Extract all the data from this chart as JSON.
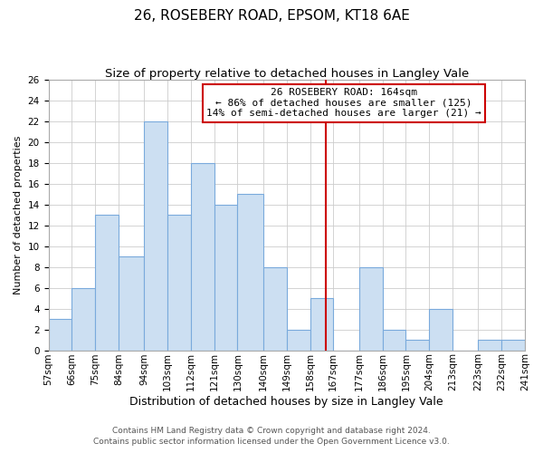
{
  "title": "26, ROSEBERY ROAD, EPSOM, KT18 6AE",
  "subtitle": "Size of property relative to detached houses in Langley Vale",
  "xlabel": "Distribution of detached houses by size in Langley Vale",
  "ylabel": "Number of detached properties",
  "bin_labels": [
    "57sqm",
    "66sqm",
    "75sqm",
    "84sqm",
    "94sqm",
    "103sqm",
    "112sqm",
    "121sqm",
    "130sqm",
    "140sqm",
    "149sqm",
    "158sqm",
    "167sqm",
    "177sqm",
    "186sqm",
    "195sqm",
    "204sqm",
    "213sqm",
    "223sqm",
    "232sqm",
    "241sqm"
  ],
  "bin_edges": [
    57,
    66,
    75,
    84,
    94,
    103,
    112,
    121,
    130,
    140,
    149,
    158,
    167,
    177,
    186,
    195,
    204,
    213,
    223,
    232,
    241
  ],
  "counts": [
    3,
    6,
    13,
    9,
    22,
    13,
    18,
    14,
    15,
    8,
    2,
    5,
    0,
    8,
    2,
    1,
    4,
    0,
    1,
    1,
    0
  ],
  "bar_color": "#ccdff2",
  "bar_edgecolor": "#7aaadc",
  "vline_x": 164,
  "vline_color": "#cc0000",
  "annotation_title": "26 ROSEBERY ROAD: 164sqm",
  "annotation_line1": "← 86% of detached houses are smaller (125)",
  "annotation_line2": "14% of semi-detached houses are larger (21) →",
  "annotation_box_edgecolor": "#cc0000",
  "ylim": [
    0,
    26
  ],
  "yticks": [
    0,
    2,
    4,
    6,
    8,
    10,
    12,
    14,
    16,
    18,
    20,
    22,
    24,
    26
  ],
  "footnote1": "Contains HM Land Registry data © Crown copyright and database right 2024.",
  "footnote2": "Contains public sector information licensed under the Open Government Licence v3.0.",
  "title_fontsize": 11,
  "subtitle_fontsize": 9.5,
  "xlabel_fontsize": 9,
  "ylabel_fontsize": 8,
  "tick_fontsize": 7.5,
  "annotation_fontsize": 8,
  "footnote_fontsize": 6.5,
  "background_color": "#ffffff"
}
